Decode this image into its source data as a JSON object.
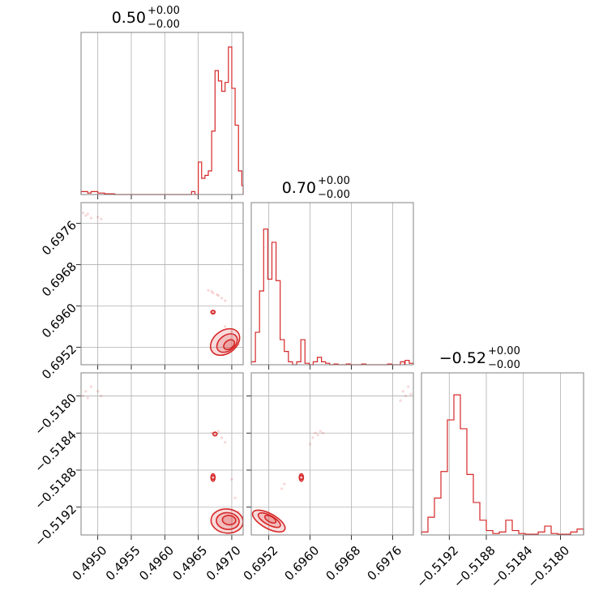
{
  "chart_data": {
    "type": "corner",
    "color": "#d62728",
    "params": [
      {
        "name": "p0",
        "title": {
          "value": "0.50",
          "plus": "+0.00",
          "minus": "−0.00"
        },
        "range": [
          0.49475,
          0.49717
        ],
        "ticks": [
          0.495,
          0.4955,
          0.496,
          0.4965,
          0.497
        ],
        "tick_labels": [
          "0.4950",
          "0.4955",
          "0.4960",
          "0.4965",
          "0.4970"
        ]
      },
      {
        "name": "p1",
        "title": {
          "value": "0.70",
          "plus": "+0.00",
          "minus": "−0.00"
        },
        "range": [
          0.69486,
          0.698
        ],
        "ticks": [
          0.6952,
          0.696,
          0.6968,
          0.6976
        ],
        "tick_labels": [
          "0.6952",
          "0.6960",
          "0.6968",
          "0.6976"
        ]
      },
      {
        "name": "p2",
        "title": {
          "value": "−0.52",
          "plus": "+0.00",
          "minus": "−0.00"
        },
        "range": [
          -0.5195,
          -0.51775
        ],
        "ticks": [
          -0.5192,
          -0.5188,
          -0.5184,
          -0.518
        ],
        "tick_labels": [
          "−0.5192",
          "−0.5188",
          "−0.5184",
          "−0.5180"
        ],
        "y_ticks": [
          -0.518,
          -0.5184,
          -0.5188,
          -0.5192
        ],
        "y_tick_labels": [
          "−0.5180",
          "−0.5184",
          "−0.5188",
          "−0.5192"
        ]
      }
    ],
    "p1_y_ticks": [
      0.6976,
      0.6968,
      0.696,
      0.6952
    ],
    "p1_y_tick_labels": [
      "0.6976",
      "0.6968",
      "0.6960",
      "0.6952"
    ],
    "histograms": [
      {
        "param": "p0",
        "bins": [
          [
            0.49475,
            0.02
          ],
          [
            0.4948,
            0.02
          ],
          [
            0.49485,
            0.01
          ],
          [
            0.4949,
            0.02
          ],
          [
            0.49495,
            0.02
          ],
          [
            0.495,
            0.01
          ],
          [
            0.49505,
            0.01
          ],
          [
            0.4951,
            0.005
          ],
          [
            0.49515,
            0.005
          ],
          [
            0.4952,
            0.005
          ],
          [
            0.4964,
            0.02
          ],
          [
            0.4965,
            0.22
          ],
          [
            0.49655,
            0.11
          ],
          [
            0.4966,
            0.13
          ],
          [
            0.49665,
            0.16
          ],
          [
            0.4967,
            0.43
          ],
          [
            0.49675,
            0.84
          ],
          [
            0.4968,
            0.77
          ],
          [
            0.49685,
            0.7
          ],
          [
            0.4969,
            0.76
          ],
          [
            0.49695,
            1.0
          ],
          [
            0.497,
            0.72
          ],
          [
            0.49705,
            0.47
          ],
          [
            0.4971,
            0.16
          ],
          [
            0.49715,
            0.06
          ]
        ]
      },
      {
        "param": "p1",
        "bins": [
          [
            0.69486,
            0.02
          ],
          [
            0.69494,
            0.22
          ],
          [
            0.69502,
            0.5
          ],
          [
            0.6951,
            0.92
          ],
          [
            0.69518,
            0.58
          ],
          [
            0.69526,
            0.83
          ],
          [
            0.69534,
            0.57
          ],
          [
            0.69542,
            0.17
          ],
          [
            0.6955,
            0.09
          ],
          [
            0.69558,
            0.02
          ],
          [
            0.69574,
            0.02
          ],
          [
            0.69582,
            0.17
          ],
          [
            0.6959,
            0.01
          ],
          [
            0.69606,
            0.02
          ],
          [
            0.69614,
            0.05
          ],
          [
            0.69622,
            0.02
          ],
          [
            0.6963,
            0.01
          ],
          [
            0.69646,
            0.005
          ],
          [
            0.6967,
            0.005
          ],
          [
            0.697,
            0.005
          ],
          [
            0.6975,
            0.005
          ],
          [
            0.69775,
            0.02
          ],
          [
            0.69784,
            0.03
          ],
          [
            0.69792,
            0.01
          ]
        ]
      },
      {
        "param": "p2",
        "bins": [
          [
            -0.5195,
            0.02
          ],
          [
            -0.51943,
            0.12
          ],
          [
            -0.51936,
            0.25
          ],
          [
            -0.51929,
            0.43
          ],
          [
            -0.51922,
            0.78
          ],
          [
            -0.51915,
            0.95
          ],
          [
            -0.51908,
            0.72
          ],
          [
            -0.51901,
            0.41
          ],
          [
            -0.51894,
            0.22
          ],
          [
            -0.51887,
            0.1
          ],
          [
            -0.5188,
            0.03
          ],
          [
            -0.51873,
            0.01
          ],
          [
            -0.51866,
            0.02
          ],
          [
            -0.51859,
            0.1
          ],
          [
            -0.51852,
            0.03
          ],
          [
            -0.51845,
            0.01
          ],
          [
            -0.51838,
            0.005
          ],
          [
            -0.51831,
            0.005
          ],
          [
            -0.51824,
            0.02
          ],
          [
            -0.51817,
            0.06
          ],
          [
            -0.5181,
            0.01
          ],
          [
            -0.51803,
            0.005
          ],
          [
            -0.51796,
            0.005
          ],
          [
            -0.51789,
            0.02
          ],
          [
            -0.51782,
            0.04
          ]
        ]
      }
    ],
    "scatter": [
      {
        "x": "p0",
        "y": "p1",
        "points": [
          [
            0.49478,
            0.6978
          ],
          [
            0.49482,
            0.69775
          ],
          [
            0.49485,
            0.69778
          ],
          [
            0.4949,
            0.6977
          ],
          [
            0.495,
            0.69772
          ],
          [
            0.49505,
            0.69768
          ],
          [
            0.49665,
            0.6963
          ],
          [
            0.4967,
            0.69628
          ],
          [
            0.49672,
            0.69625
          ],
          [
            0.49678,
            0.69622
          ],
          [
            0.4968,
            0.6962
          ],
          [
            0.49685,
            0.69615
          ],
          [
            0.4969,
            0.6961
          ],
          [
            0.49672,
            0.69585
          ],
          [
            0.4969,
            0.6956
          ],
          [
            0.497,
            0.6955
          ],
          [
            0.4971,
            0.69525
          ]
        ]
      },
      {
        "x": "p0",
        "y": "p2",
        "points": [
          [
            0.49478,
            -0.518
          ],
          [
            0.49482,
            -0.51795
          ],
          [
            0.49485,
            -0.51802
          ],
          [
            0.4949,
            -0.5179
          ],
          [
            0.495,
            -0.51795
          ],
          [
            0.49505,
            -0.518
          ],
          [
            0.4967,
            -0.5184
          ],
          [
            0.49675,
            -0.51842
          ],
          [
            0.4968,
            -0.51838
          ],
          [
            0.49685,
            -0.51845
          ],
          [
            0.4969,
            -0.5185
          ],
          [
            0.497,
            -0.5189
          ],
          [
            0.49705,
            -0.5191
          ],
          [
            0.4971,
            -0.51925
          ]
        ]
      },
      {
        "x": "p1",
        "y": "p2",
        "points": [
          [
            0.6961,
            -0.5184
          ],
          [
            0.69615,
            -0.51842
          ],
          [
            0.6962,
            -0.51838
          ],
          [
            0.69605,
            -0.51845
          ],
          [
            0.69625,
            -0.5184
          ],
          [
            0.696,
            -0.51852
          ],
          [
            0.6978,
            -0.51795
          ],
          [
            0.69785,
            -0.518
          ],
          [
            0.6979,
            -0.5179
          ],
          [
            0.69775,
            -0.51805
          ],
          [
            0.69795,
            -0.51798
          ],
          [
            0.69545,
            -0.519
          ],
          [
            0.6955,
            -0.51895
          ]
        ]
      }
    ],
    "contours": [
      {
        "x": "p0",
        "y": "p1",
        "levels": [
          {
            "cx": 0.4969,
            "cy": 0.6953,
            "rx": 0.00024,
            "ry": 0.00022,
            "tilt": -0.75
          },
          {
            "cx": 0.49693,
            "cy": 0.69528,
            "rx": 0.00017,
            "ry": 0.00015,
            "tilt": -0.75
          },
          {
            "cx": 0.49696,
            "cy": 0.69525,
            "rx": 9e-05,
            "ry": 8e-05,
            "tilt": -0.75
          },
          {
            "cx": 0.49672,
            "cy": 0.69588,
            "rx": 3e-05,
            "ry": 3e-05,
            "tilt": 0
          },
          {
            "cx": 0.49672,
            "cy": 0.69588,
            "rx": 1.5e-05,
            "ry": 1.5e-05,
            "tilt": 0
          }
        ]
      },
      {
        "x": "p0",
        "y": "p2",
        "levels": [
          {
            "cx": 0.49693,
            "cy": -0.51935,
            "rx": 0.00024,
            "ry": 0.00013,
            "tilt": 0.1
          },
          {
            "cx": 0.49694,
            "cy": -0.51935,
            "rx": 0.00017,
            "ry": 9e-05,
            "tilt": 0.1
          },
          {
            "cx": 0.49696,
            "cy": -0.51934,
            "rx": 0.0001,
            "ry": 5e-05,
            "tilt": 0.1
          },
          {
            "cx": 0.49672,
            "cy": -0.51888,
            "rx": 3e-05,
            "ry": 4e-05,
            "tilt": 0
          },
          {
            "cx": 0.49672,
            "cy": -0.51888,
            "rx": 1.5e-05,
            "ry": 2e-05,
            "tilt": 0
          },
          {
            "cx": 0.49675,
            "cy": -0.51841,
            "rx": 2e-05,
            "ry": 2e-05,
            "tilt": 0
          }
        ]
      },
      {
        "x": "p1",
        "y": "p2",
        "levels": [
          {
            "cx": 0.6952,
            "cy": -0.51935,
            "rx": 0.00035,
            "ry": 8e-05,
            "tilt": 0.55
          },
          {
            "cx": 0.69521,
            "cy": -0.51934,
            "rx": 0.00024,
            "ry": 5e-05,
            "tilt": 0.55
          },
          {
            "cx": 0.69523,
            "cy": -0.51933,
            "rx": 0.00012,
            "ry": 3e-05,
            "tilt": 0.55
          },
          {
            "cx": 0.69583,
            "cy": -0.51888,
            "rx": 4e-05,
            "ry": 4e-05,
            "tilt": 0
          },
          {
            "cx": 0.69583,
            "cy": -0.51888,
            "rx": 2e-05,
            "ry": 2e-05,
            "tilt": 0
          }
        ]
      }
    ]
  }
}
